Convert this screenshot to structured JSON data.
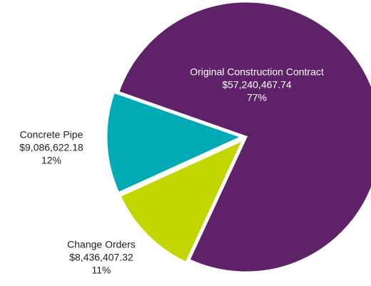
{
  "chart_data": {
    "type": "pie",
    "categories": [
      "Original Construction Contract",
      "Change Orders",
      "Concrete Pipe"
    ],
    "values": [
      57240467.74,
      8436407.32,
      9086622.18
    ],
    "value_labels": [
      "$57,240,467.74",
      "$8,436,407.32",
      "$9,086,622.18"
    ],
    "percent_labels": [
      "77%",
      "11%",
      "12%"
    ],
    "colors": [
      "#5f2167",
      "#c4d600",
      "#00abb5"
    ]
  }
}
